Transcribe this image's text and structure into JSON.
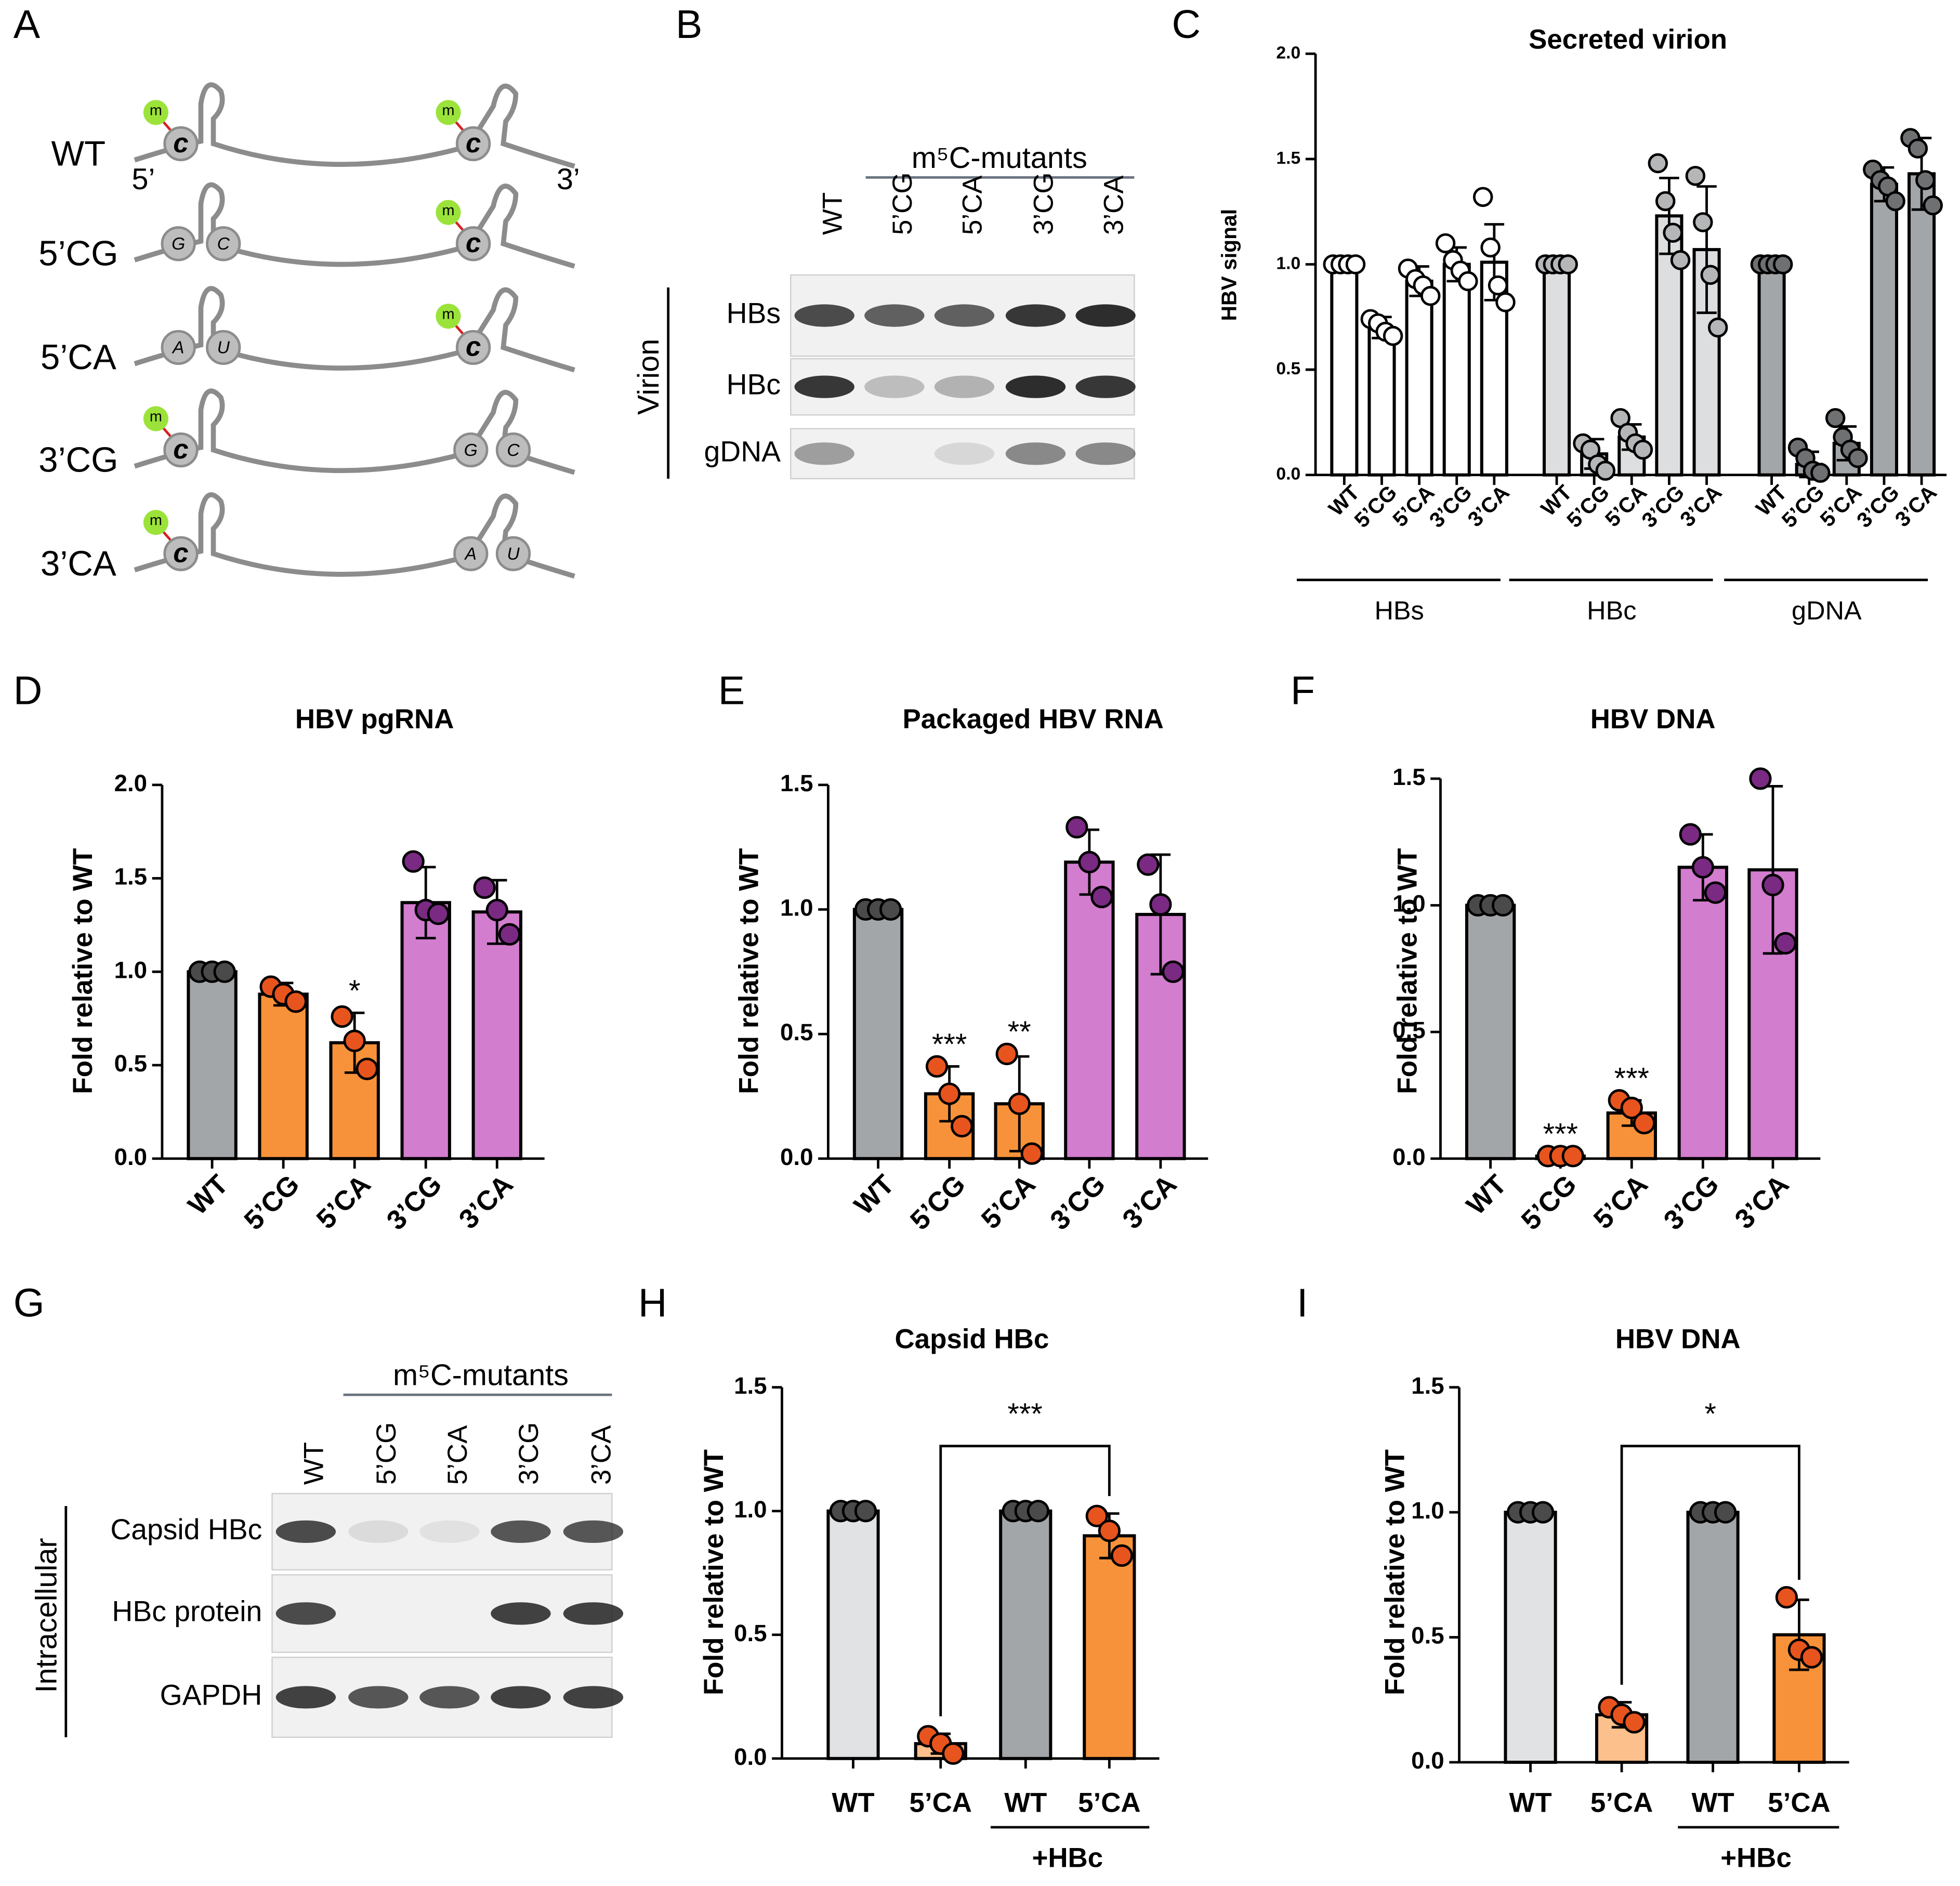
{
  "panel_labels": [
    "A",
    "B",
    "C",
    "D",
    "E",
    "F",
    "G",
    "H",
    "I"
  ],
  "diagram_a": {
    "ends": [
      "5’",
      "3’"
    ],
    "rows": [
      {
        "label": "WT",
        "left": [
          "m",
          "c"
        ],
        "right": [
          "m",
          "c"
        ]
      },
      {
        "label": "5’CG",
        "left": [
          "G",
          "C"
        ],
        "right": [
          "m",
          "c"
        ]
      },
      {
        "label": "5’CA",
        "left": [
          "A",
          "U"
        ],
        "right": [
          "m",
          "c"
        ]
      },
      {
        "label": "3’CG",
        "left": [
          "m",
          "c"
        ],
        "right": [
          "G",
          "C"
        ]
      },
      {
        "label": "3’CA",
        "left": [
          "m",
          "c"
        ],
        "right": [
          "A",
          "U"
        ]
      }
    ]
  },
  "blot_b": {
    "group_label": "m⁵C-mutants",
    "lanes": [
      "WT",
      "5’CG",
      "5’CA",
      "3’CG",
      "3’CA"
    ],
    "side_label": "Virion",
    "rows": [
      "HBs",
      "HBc",
      "gDNA"
    ]
  },
  "blot_g": {
    "group_label": "m⁵C-mutants",
    "lanes": [
      "WT",
      "5’CG",
      "5’CA",
      "3’CG",
      "3’CA"
    ],
    "side_label": "Intracellular",
    "rows": [
      "Capsid HBc",
      "HBc protein",
      "GAPDH"
    ]
  },
  "chart_data": [
    {
      "type": "bar",
      "title": "Secreted virion",
      "y_label": "HBV signal",
      "categories": [
        "WT",
        "5’CG",
        "5’CA",
        "3’CG",
        "3’CA"
      ],
      "ylim": [
        0,
        2
      ],
      "yticks": [
        {
          "value": 0,
          "label": "0.0"
        },
        {
          "value": 0.5,
          "label": "0.5"
        },
        {
          "value": 1,
          "label": "1.0"
        },
        {
          "value": 1.5,
          "label": "1.5"
        },
        {
          "value": 2,
          "label": "2.0"
        }
      ],
      "series": [
        {
          "name": "HBs",
          "color": "#ffffff",
          "point_color": "#ffffff",
          "values": [
            1.0,
            0.7,
            0.92,
            1.0,
            1.01
          ],
          "errors": [
            0,
            0.05,
            0.07,
            0.08,
            0.18
          ],
          "points": [
            [
              1,
              1,
              1,
              1
            ],
            [
              0.74,
              0.72,
              0.68,
              0.66
            ],
            [
              0.98,
              0.93,
              0.9,
              0.85
            ],
            [
              1.1,
              1.02,
              0.97,
              0.92
            ],
            [
              1.32,
              1.08,
              0.9,
              0.82
            ]
          ]
        },
        {
          "name": "HBc",
          "color": "#dcdedf",
          "point_color": "#b4b6b8",
          "values": [
            1.0,
            0.1,
            0.18,
            1.23,
            1.07
          ],
          "errors": [
            0,
            0.07,
            0.06,
            0.18,
            0.3
          ],
          "points": [
            [
              1,
              1,
              1,
              1
            ],
            [
              0.15,
              0.12,
              0.05,
              0.02
            ],
            [
              0.27,
              0.2,
              0.15,
              0.12
            ],
            [
              1.48,
              1.3,
              1.15,
              1.02
            ],
            [
              1.42,
              1.2,
              0.95,
              0.7
            ]
          ]
        },
        {
          "name": "gDNA",
          "color": "#a3a6a9",
          "point_color": "#6e7072",
          "values": [
            1.0,
            0.05,
            0.15,
            1.38,
            1.43
          ],
          "errors": [
            0,
            0.06,
            0.08,
            0.08,
            0.17
          ],
          "points": [
            [
              1,
              1,
              1,
              1
            ],
            [
              0.13,
              0.08,
              0.02,
              0.01
            ],
            [
              0.27,
              0.18,
              0.12,
              0.08
            ],
            [
              1.45,
              1.4,
              1.37,
              1.3
            ],
            [
              1.6,
              1.55,
              1.4,
              1.28
            ]
          ]
        }
      ]
    },
    {
      "type": "bar",
      "title": "HBV pgRNA",
      "y_label": "Fold relative to WT",
      "categories": [
        "WT",
        "5’CG",
        "5’CA",
        "3’CG",
        "3’CA"
      ],
      "ylim": [
        0,
        2
      ],
      "yticks": [
        {
          "value": 0,
          "label": "0.0"
        },
        {
          "value": 0.5,
          "label": "0.5"
        },
        {
          "value": 1,
          "label": "1.0"
        },
        {
          "value": 1.5,
          "label": "1.5"
        },
        {
          "value": 2,
          "label": "2.0"
        }
      ],
      "values": [
        1.0,
        0.88,
        0.62,
        1.37,
        1.32
      ],
      "errors": [
        0,
        0.06,
        0.16,
        0.19,
        0.17
      ],
      "points": [
        [
          1,
          1,
          1
        ],
        [
          0.92,
          0.88,
          0.84
        ],
        [
          0.76,
          0.63,
          0.48
        ],
        [
          1.59,
          1.33,
          1.31
        ],
        [
          1.45,
          1.33,
          1.2
        ]
      ],
      "colors": [
        "#a3a6a9",
        "#f7923a",
        "#f7923a",
        "#d27dce",
        "#d27dce"
      ],
      "point_colors": [
        "#4a4a4a",
        "#e8541e",
        "#e8541e",
        "#7a2a82",
        "#7a2a82"
      ],
      "significance": [
        null,
        null,
        "*",
        null,
        null
      ]
    },
    {
      "type": "bar",
      "title": "Packaged HBV RNA",
      "y_label": "Fold relative to WT",
      "categories": [
        "WT",
        "5’CG",
        "5’CA",
        "3’CG",
        "3’CA"
      ],
      "ylim": [
        0,
        1.5
      ],
      "yticks": [
        {
          "value": 0,
          "label": "0.0"
        },
        {
          "value": 0.5,
          "label": "0.5"
        },
        {
          "value": 1,
          "label": "1.0"
        },
        {
          "value": 1.5,
          "label": "1.5"
        }
      ],
      "values": [
        1.0,
        0.26,
        0.22,
        1.19,
        0.98
      ],
      "errors": [
        0,
        0.11,
        0.19,
        0.13,
        0.24
      ],
      "points": [
        [
          1,
          1,
          1
        ],
        [
          0.37,
          0.26,
          0.13
        ],
        [
          0.42,
          0.22,
          0.02
        ],
        [
          1.33,
          1.19,
          1.05
        ],
        [
          1.18,
          1.02,
          0.75
        ]
      ],
      "colors": [
        "#a3a6a9",
        "#f7923a",
        "#f7923a",
        "#d27dce",
        "#d27dce"
      ],
      "point_colors": [
        "#4a4a4a",
        "#e8541e",
        "#e8541e",
        "#7a2a82",
        "#7a2a82"
      ],
      "significance": [
        null,
        "***",
        "**",
        null,
        null
      ]
    },
    {
      "type": "bar",
      "title": "HBV DNA",
      "y_label": "Fold relative to WT",
      "categories": [
        "WT",
        "5’CG",
        "5’CA",
        "3’CG",
        "3’CA"
      ],
      "ylim": [
        0,
        1.5
      ],
      "yticks": [
        {
          "value": 0,
          "label": "0.0"
        },
        {
          "value": 0.5,
          "label": "0.5"
        },
        {
          "value": 1,
          "label": "1.0"
        },
        {
          "value": 1.5,
          "label": "1.5"
        }
      ],
      "values": [
        1.0,
        0.01,
        0.18,
        1.15,
        1.14
      ],
      "errors": [
        0,
        0,
        0.05,
        0.13,
        0.33
      ],
      "points": [
        [
          1,
          1,
          1
        ],
        [
          0.01,
          0.01,
          0.01
        ],
        [
          0.23,
          0.2,
          0.14
        ],
        [
          1.28,
          1.15,
          1.05
        ],
        [
          1.5,
          1.08,
          0.85
        ]
      ],
      "colors": [
        "#a3a6a9",
        "#f7923a",
        "#f7923a",
        "#d27dce",
        "#d27dce"
      ],
      "point_colors": [
        "#4a4a4a",
        "#e8541e",
        "#e8541e",
        "#7a2a82",
        "#7a2a82"
      ],
      "significance": [
        null,
        "***",
        "***",
        null,
        null
      ]
    },
    {
      "type": "bar",
      "title": "Capsid HBc",
      "y_label": "Fold relative to WT",
      "categories": [
        "WT",
        "5’CA",
        "WT",
        "5’CA"
      ],
      "ylim": [
        0,
        1.5
      ],
      "yticks": [
        {
          "value": 0,
          "label": "0.0"
        },
        {
          "value": 0.5,
          "label": "0.5"
        },
        {
          "value": 1,
          "label": "1.0"
        },
        {
          "value": 1.5,
          "label": "1.5"
        }
      ],
      "values": [
        1.0,
        0.06,
        1.0,
        0.9
      ],
      "errors": [
        0,
        0.04,
        0,
        0.09
      ],
      "points": [
        [
          1,
          1,
          1
        ],
        [
          0.09,
          0.06,
          0.02
        ],
        [
          1,
          1,
          1
        ],
        [
          0.98,
          0.92,
          0.82
        ]
      ],
      "colors": [
        "#e0e2e3",
        "#fcc08c",
        "#a3a6a9",
        "#f7923a"
      ],
      "point_colors": [
        "#4a4a4a",
        "#e8541e",
        "#4a4a4a",
        "#e8541e"
      ],
      "groups": [
        {
          "label": "+HBc",
          "members": [
            2,
            3
          ]
        }
      ],
      "comparison": {
        "label": "***",
        "pair": [
          1,
          3
        ]
      }
    },
    {
      "type": "bar",
      "title": "HBV DNA",
      "y_label": "Fold relative to WT",
      "categories": [
        "WT",
        "5’CA",
        "WT",
        "5’CA"
      ],
      "ylim": [
        0,
        1.5
      ],
      "yticks": [
        {
          "value": 0,
          "label": "0.0"
        },
        {
          "value": 0.5,
          "label": "0.5"
        },
        {
          "value": 1,
          "label": "1.0"
        },
        {
          "value": 1.5,
          "label": "1.5"
        }
      ],
      "values": [
        1.0,
        0.19,
        1.0,
        0.51
      ],
      "errors": [
        0,
        0.05,
        0,
        0.14
      ],
      "points": [
        [
          1,
          1,
          1
        ],
        [
          0.22,
          0.19,
          0.16
        ],
        [
          1,
          1,
          1
        ],
        [
          0.66,
          0.45,
          0.42
        ]
      ],
      "colors": [
        "#e0e2e3",
        "#fcc08c",
        "#a3a6a9",
        "#f7923a"
      ],
      "point_colors": [
        "#4a4a4a",
        "#e8541e",
        "#4a4a4a",
        "#e8541e"
      ],
      "groups": [
        {
          "label": "+HBc",
          "members": [
            2,
            3
          ]
        }
      ],
      "comparison": {
        "label": "*",
        "pair": [
          1,
          3
        ]
      }
    }
  ]
}
